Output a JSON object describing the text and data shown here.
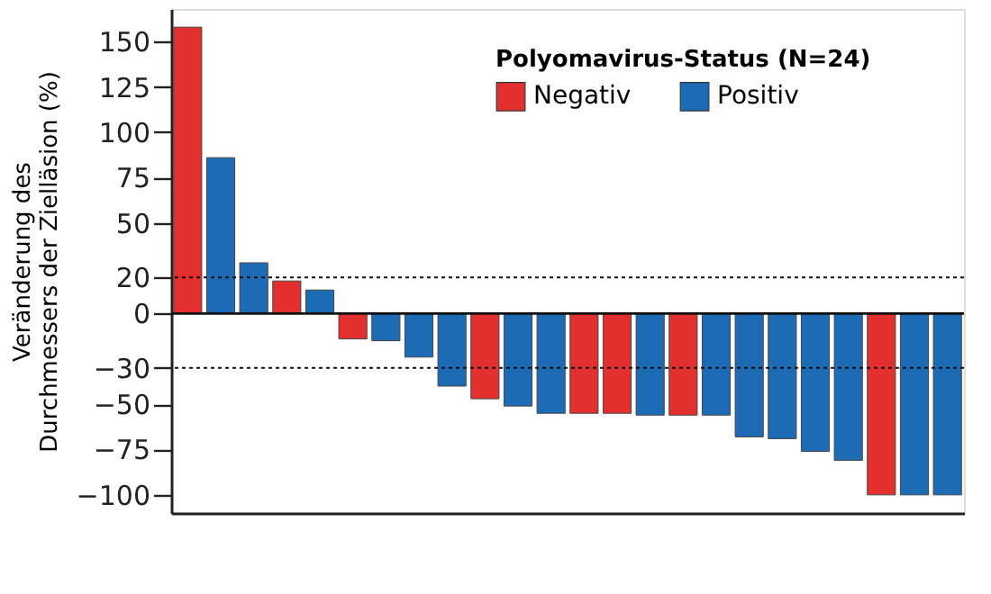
{
  "chart_data": {
    "type": "bar",
    "ylabel": "Veränderung des\nDurchmessers der Zielläsion (%)",
    "legend_title": "Polyomavirus-Status (N=24)",
    "categories": [
      null,
      null,
      null,
      null,
      null,
      null,
      null,
      null,
      null,
      null,
      null,
      null,
      null,
      null,
      null,
      null,
      null,
      null,
      null,
      null,
      null,
      null,
      null,
      null
    ],
    "series": [
      {
        "name": "Negativ",
        "color": "#e3302e",
        "values": [
          158,
          null,
          null,
          18,
          null,
          -14,
          null,
          null,
          null,
          -47,
          null,
          null,
          -55,
          -55,
          null,
          -56,
          null,
          null,
          null,
          null,
          null,
          -100,
          null,
          null
        ]
      },
      {
        "name": "Positiv",
        "color": "#1d6bb4",
        "values": [
          null,
          86,
          28,
          null,
          13,
          null,
          -15,
          -24,
          -40,
          null,
          -51,
          -55,
          null,
          null,
          -56,
          null,
          -56,
          -68,
          -69,
          -76,
          -81,
          null,
          -100,
          -100
        ]
      }
    ],
    "ylim": [
      -110,
      168
    ],
    "yticks": [
      150,
      125,
      100,
      75,
      50,
      20,
      0,
      -30,
      -50,
      -75,
      -100
    ],
    "ref_lines": [
      {
        "axis": "y",
        "value": 20,
        "line_style": "dotted"
      },
      {
        "axis": "y",
        "value": -30,
        "line_style": "dotted"
      },
      {
        "axis": "y",
        "value": 0,
        "line_style": "solid"
      }
    ],
    "grid": false,
    "legend": "top right",
    "tick_labels": "y"
  }
}
